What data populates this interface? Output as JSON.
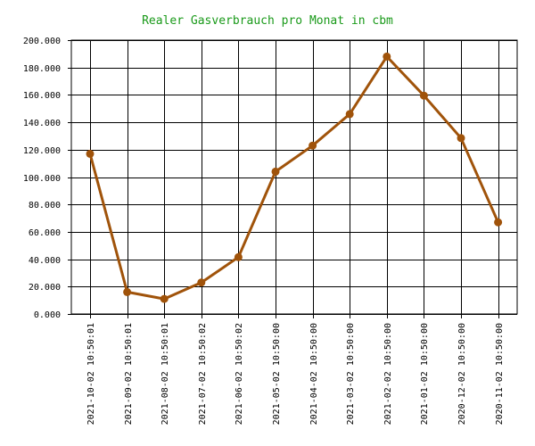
{
  "chart_data": {
    "type": "line",
    "title": "Realer Gasverbrauch pro Monat in cbm",
    "xlabel": "",
    "ylabel": "",
    "categories": [
      "2021-10-02 10:50:01",
      "2021-09-02 10:50:01",
      "2021-08-02 10:50:01",
      "2021-07-02 10:50:02",
      "2021-06-02 10:50:02",
      "2021-05-02 10:50:00",
      "2021-04-02 10:50:00",
      "2021-03-02 10:50:00",
      "2021-02-02 10:50:00",
      "2021-01-02 10:50:00",
      "2020-12-02 10:50:00",
      "2020-11-02 10:50:00"
    ],
    "series": [
      {
        "values": [
          117,
          16,
          11,
          23,
          41.5,
          104,
          123,
          146,
          188,
          159.5,
          128.5,
          67
        ]
      }
    ],
    "ylim": [
      0,
      200
    ],
    "yticks": [
      0,
      20,
      40,
      60,
      80,
      100,
      120,
      140,
      160,
      180,
      200
    ],
    "ytick_labels": [
      "0.000",
      "20.000",
      "40.000",
      "60.000",
      "80.000",
      "100.000",
      "120.000",
      "140.000",
      "160.000",
      "180.000",
      "200.000"
    ],
    "grid": true,
    "legend": "none",
    "colors": {
      "line": "#a0530a",
      "marker": "#a0530a",
      "title": "#1a9a1a",
      "grid": "#000000"
    }
  }
}
